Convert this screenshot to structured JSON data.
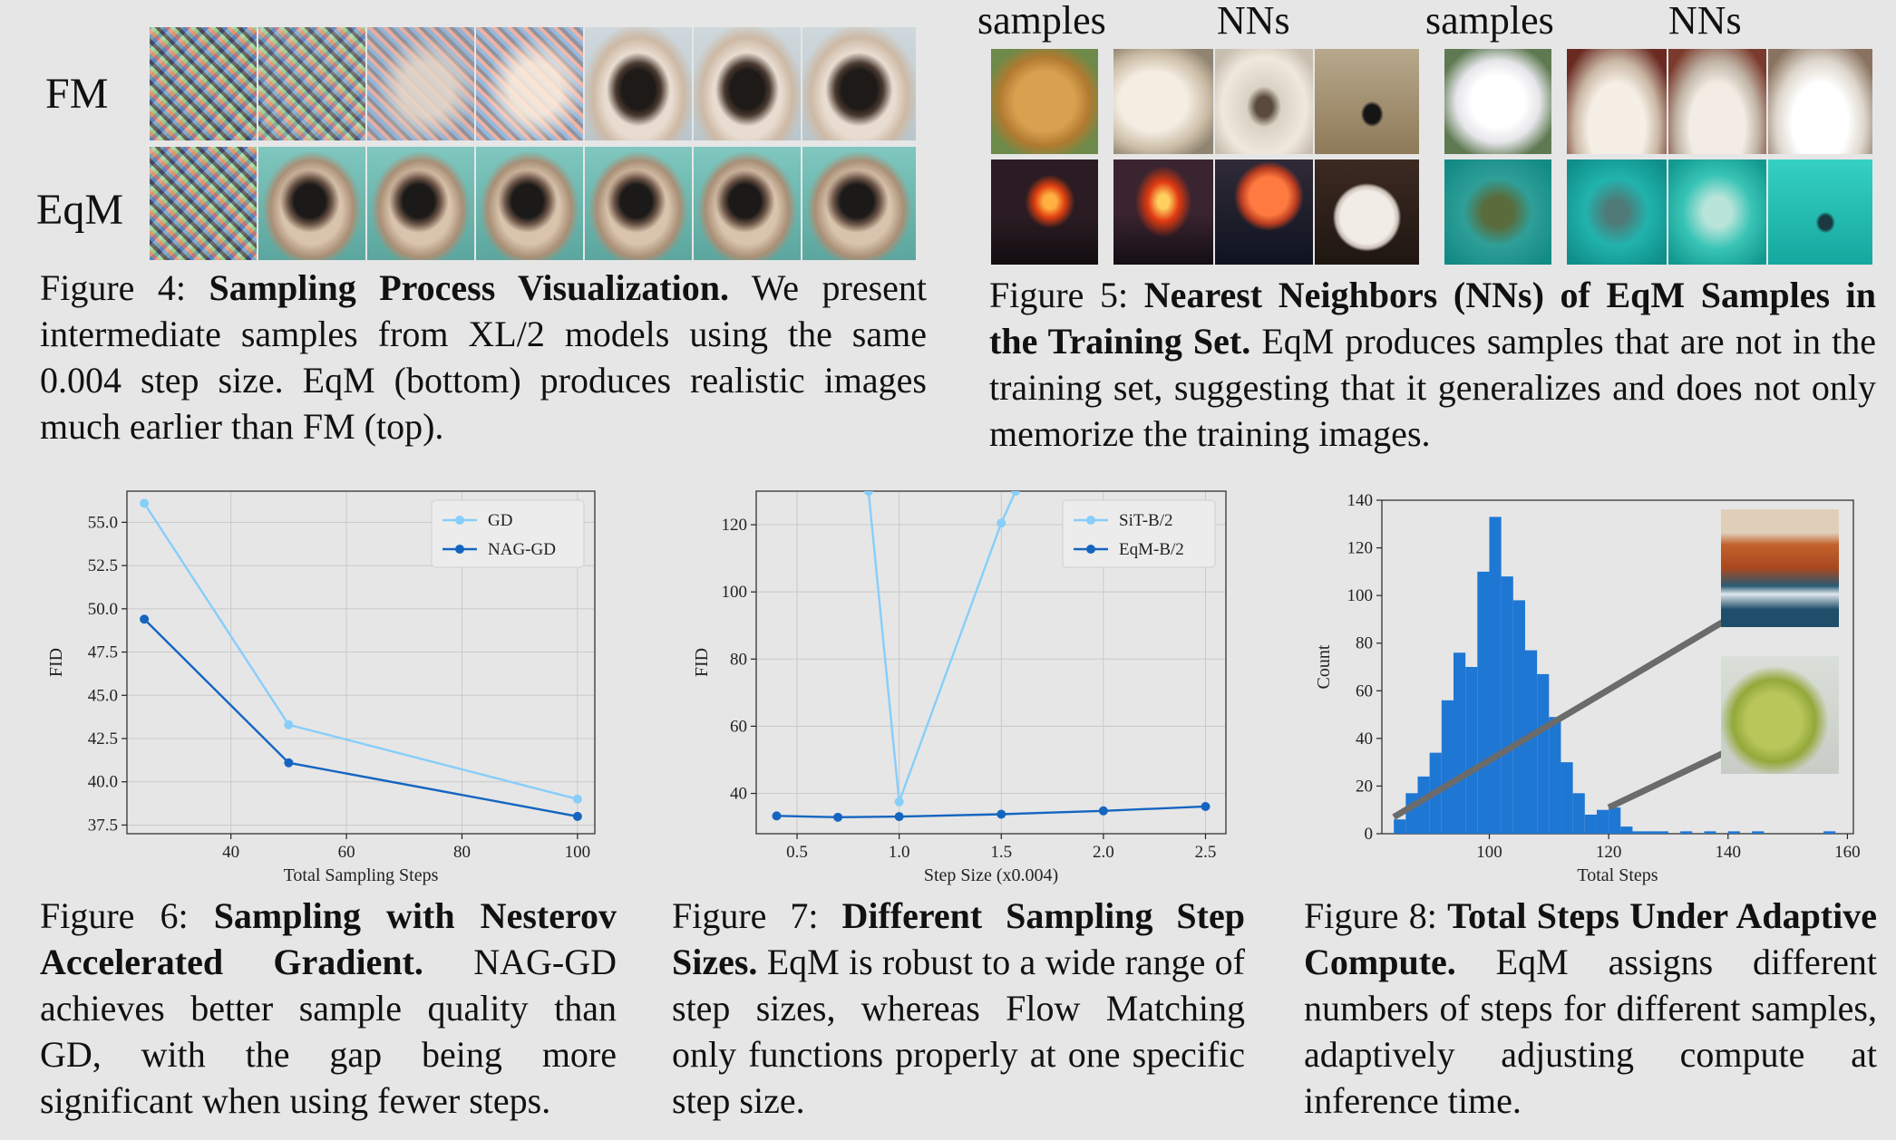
{
  "fig4": {
    "row_labels": [
      "FM",
      "EqM"
    ],
    "caption_prefix": "Figure 4: ",
    "caption_title": "Sampling Process Visualization.",
    "caption_body": " We present intermediate samples from XL/2 models using the same 0.004 step size. EqM (bottom) produces realistic images much earlier than FM (top)."
  },
  "fig5": {
    "headers": [
      "samples",
      "NNs",
      "samples",
      "NNs"
    ],
    "caption_prefix": "Figure 5: ",
    "caption_title": "Nearest Neighbors (NNs) of EqM Samples in the Training Set.",
    "caption_body": " EqM produces samples that are not in the training set, suggesting that it generalizes and does not only memorize the training images."
  },
  "fig6": {
    "caption_prefix": "Figure 6: ",
    "caption_title": "Sampling with Nesterov Accelerated Gradient.",
    "caption_body": " NAG-GD achieves better sample quality than GD, with the gap being more significant when using fewer steps."
  },
  "fig7": {
    "caption_prefix": "Figure 7: ",
    "caption_title": "Different Sampling Step Sizes.",
    "caption_body": " EqM is robust to a wide range of step sizes, whereas Flow Matching only functions properly at one specific step size."
  },
  "fig8": {
    "caption_prefix": "Figure 8: ",
    "caption_title": "Total Steps Under Adaptive Compute.",
    "caption_body": " EqM assigns different numbers of steps for different samples, adaptively adjusting compute at inference time."
  },
  "chart_data": [
    {
      "type": "line",
      "xlabel": "Total Sampling Steps",
      "ylabel": "FID",
      "xlim": [
        22,
        103
      ],
      "ylim": [
        37.0,
        56.8
      ],
      "xticks": [
        40,
        60,
        80,
        100
      ],
      "yticks": [
        37.5,
        40.0,
        42.5,
        45.0,
        47.5,
        50.0,
        52.5,
        55.0
      ],
      "grid": true,
      "legend": "top-right",
      "series": [
        {
          "name": "GD",
          "color": "#87cefa",
          "x": [
            25,
            50,
            100
          ],
          "y": [
            56.1,
            43.3,
            39.0
          ]
        },
        {
          "name": "NAG-GD",
          "color": "#1565c0",
          "x": [
            25,
            50,
            100
          ],
          "y": [
            49.4,
            41.1,
            38.0
          ]
        }
      ]
    },
    {
      "type": "line",
      "xlabel": "Step Size (x0.004)",
      "ylabel": "FID",
      "xlim": [
        0.3,
        2.6
      ],
      "ylim": [
        28,
        130
      ],
      "xticks": [
        0.5,
        1.0,
        1.5,
        2.0,
        2.5
      ],
      "yticks": [
        40,
        60,
        80,
        100,
        120
      ],
      "grid": true,
      "legend": "top-right",
      "series": [
        {
          "name": "SiT-B/2",
          "color": "#87cefa",
          "x": [
            0.85,
            1.0,
            1.5,
            1.57
          ],
          "y": [
            130,
            37.5,
            120.5,
            130
          ]
        },
        {
          "name": "EqM-B/2",
          "color": "#1565c0",
          "x": [
            0.4,
            0.7,
            1.0,
            1.5,
            2.0,
            2.5
          ],
          "y": [
            33.3,
            32.9,
            33.1,
            33.8,
            34.8,
            36.1
          ]
        }
      ]
    },
    {
      "type": "bar",
      "xlabel": "Total Steps",
      "ylabel": "Count",
      "xlim": [
        82,
        161
      ],
      "ylim": [
        0,
        140
      ],
      "xticks": [
        100,
        120,
        140,
        160
      ],
      "yticks": [
        0,
        20,
        40,
        60,
        80,
        100,
        120,
        140
      ],
      "bin_width": 2,
      "bin_starts": [
        84,
        86,
        88,
        90,
        92,
        94,
        96,
        98,
        100,
        102,
        104,
        106,
        108,
        110,
        112,
        114,
        116,
        118,
        120,
        122,
        124,
        126,
        128,
        130,
        132,
        134,
        136,
        138,
        140,
        142,
        144,
        146,
        148,
        150,
        152,
        154,
        156,
        158
      ],
      "values": [
        6,
        17,
        24,
        34,
        56,
        76,
        70,
        110,
        133,
        108,
        98,
        77,
        67,
        49,
        30,
        17,
        8,
        10,
        11,
        3,
        1,
        1,
        1,
        0,
        1,
        0,
        1,
        0,
        1,
        0,
        1,
        0,
        0,
        0,
        0,
        0,
        1,
        0
      ],
      "color": "#1f77d4"
    }
  ]
}
